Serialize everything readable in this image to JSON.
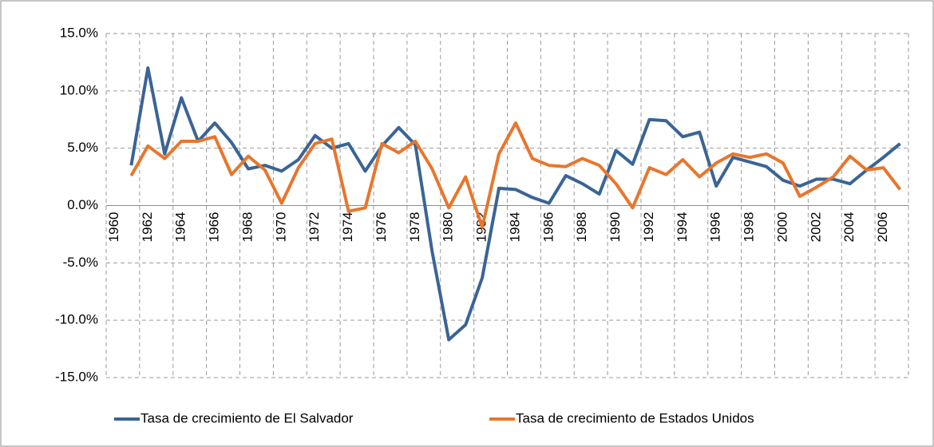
{
  "chart_data": {
    "type": "line",
    "categories": [
      "1960",
      null,
      "1962",
      null,
      "1964",
      null,
      "1966",
      null,
      "1968",
      null,
      "1970",
      null,
      "1972",
      null,
      "1974",
      null,
      "1976",
      null,
      "1978",
      null,
      "1980",
      null,
      "1982",
      null,
      "1984",
      null,
      "1986",
      null,
      "1988",
      null,
      "1990",
      null,
      "1992",
      null,
      "1994",
      null,
      "1996",
      null,
      "1998",
      null,
      "2000",
      null,
      "2002",
      null,
      "2004",
      null,
      "2006",
      null
    ],
    "series": [
      {
        "name": "Tasa de crecimiento de El Salvador",
        "color": "#3a6496",
        "values": [
          null,
          3.5,
          12.0,
          4.5,
          9.4,
          5.6,
          7.2,
          5.5,
          3.2,
          3.5,
          3.0,
          4.0,
          6.1,
          5.0,
          5.4,
          3.0,
          5.2,
          6.8,
          5.3,
          -4.0,
          -11.7,
          -10.4,
          -6.3,
          1.5,
          1.4,
          0.7,
          0.2,
          2.6,
          1.9,
          1.0,
          4.8,
          3.6,
          7.5,
          7.4,
          6.0,
          6.4,
          1.7,
          4.2,
          3.8,
          3.4,
          2.2,
          1.7,
          2.3,
          2.3,
          1.9,
          3.1,
          4.2,
          5.4
        ]
      },
      {
        "name": "Tasa de crecimiento de Estados Unidos",
        "color": "#e8762c",
        "values": [
          null,
          2.6,
          5.2,
          4.1,
          5.6,
          5.6,
          6.0,
          2.7,
          4.3,
          3.1,
          0.2,
          3.3,
          5.4,
          5.8,
          -0.5,
          -0.2,
          5.4,
          4.6,
          5.6,
          3.2,
          -0.2,
          2.5,
          -1.9,
          4.5,
          7.2,
          4.1,
          3.5,
          3.4,
          4.1,
          3.5,
          1.9,
          -0.2,
          3.3,
          2.7,
          4.0,
          2.5,
          3.7,
          4.5,
          4.2,
          4.5,
          3.7,
          0.8,
          1.6,
          2.5,
          4.3,
          3.1,
          3.3,
          1.4
        ]
      }
    ],
    "ylim": [
      -15,
      15
    ],
    "yticks": [
      {
        "value": -15,
        "label": "-15.0%"
      },
      {
        "value": -10,
        "label": "-10.0%"
      },
      {
        "value": -5,
        "label": "-5.0%"
      },
      {
        "value": 0,
        "label": "0.0%"
      },
      {
        "value": 5,
        "label": "5.0%"
      },
      {
        "value": 10,
        "label": "10.0%"
      },
      {
        "value": 15,
        "label": "15.0%"
      }
    ],
    "grid": true,
    "legend": "bottom"
  }
}
